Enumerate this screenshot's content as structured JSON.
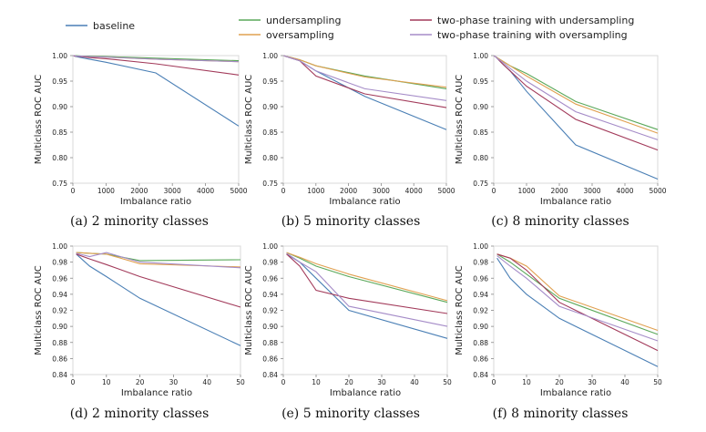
{
  "legend": [
    {
      "name": "baseline",
      "color": "#4a7fb5"
    },
    {
      "name": "undersampling",
      "color": "#5aa85a"
    },
    {
      "name": "oversampling",
      "color": "#e0a050"
    },
    {
      "name": "two-phase training with undersampling",
      "color": "#a23a5a"
    },
    {
      "name": "two-phase training with oversampling",
      "color": "#a58cc8"
    }
  ],
  "chart_data": [
    {
      "type": "line",
      "caption": "(a) 2 minority classes",
      "xlabel": "Imbalance ratio",
      "ylabel": "Multiclass ROC AUC",
      "xlim": [
        0,
        5000
      ],
      "ylim": [
        0.75,
        1.0
      ],
      "xticks": [
        "0",
        "1000",
        "2000",
        "3000",
        "4000",
        "5000"
      ],
      "yticks": [
        "0.75",
        "0.80",
        "0.85",
        "0.90",
        "0.95",
        "1.00"
      ],
      "x": [
        10,
        20,
        50,
        100,
        250,
        500,
        1000,
        2500,
        5000
      ],
      "series": [
        {
          "values": [
            1.0,
            1.0,
            0.999,
            0.998,
            0.996,
            0.993,
            0.987,
            0.966,
            0.862
          ]
        },
        {
          "values": [
            1.0,
            1.0,
            1.0,
            1.0,
            0.999,
            0.999,
            0.998,
            0.995,
            0.99
          ]
        },
        {
          "values": [
            1.0,
            1.0,
            1.0,
            0.999,
            0.999,
            0.998,
            0.997,
            0.993,
            0.988
          ]
        },
        {
          "values": [
            1.0,
            1.0,
            0.999,
            0.999,
            0.998,
            0.996,
            0.994,
            0.984,
            0.962
          ]
        },
        {
          "values": [
            1.0,
            1.0,
            1.0,
            0.999,
            0.999,
            0.998,
            0.997,
            0.993,
            0.988
          ]
        }
      ]
    },
    {
      "type": "line",
      "caption": "(b) 5 minority classes",
      "xlabel": "Imbalance ratio",
      "ylabel": "Multiclass ROC AUC",
      "xlim": [
        0,
        5000
      ],
      "ylim": [
        0.75,
        1.0
      ],
      "xticks": [
        "0",
        "1000",
        "2000",
        "3000",
        "4000",
        "5000"
      ],
      "yticks": [
        "0.75",
        "0.80",
        "0.85",
        "0.90",
        "0.95",
        "1.00"
      ],
      "x": [
        10,
        20,
        50,
        100,
        250,
        500,
        1000,
        2500,
        5000
      ],
      "series": [
        {
          "values": [
            1.0,
            1.0,
            0.999,
            0.998,
            0.995,
            0.99,
            0.97,
            0.92,
            0.855
          ]
        },
        {
          "values": [
            1.0,
            1.0,
            0.999,
            0.998,
            0.996,
            0.992,
            0.98,
            0.96,
            0.935
          ]
        },
        {
          "values": [
            1.0,
            1.0,
            0.999,
            0.998,
            0.996,
            0.992,
            0.98,
            0.958,
            0.938
          ]
        },
        {
          "values": [
            1.0,
            1.0,
            0.999,
            0.998,
            0.995,
            0.99,
            0.96,
            0.925,
            0.898
          ]
        },
        {
          "values": [
            1.0,
            1.0,
            0.999,
            0.998,
            0.995,
            0.99,
            0.97,
            0.935,
            0.912
          ]
        }
      ]
    },
    {
      "type": "line",
      "caption": "(c) 8 minority classes",
      "xlabel": "Imbalance ratio",
      "ylabel": "Multiclass ROC AUC",
      "xlim": [
        0,
        5000
      ],
      "ylim": [
        0.75,
        1.0
      ],
      "xticks": [
        "0",
        "1000",
        "2000",
        "3000",
        "4000",
        "5000"
      ],
      "yticks": [
        "0.75",
        "0.80",
        "0.85",
        "0.90",
        "0.95",
        "1.00"
      ],
      "x": [
        10,
        20,
        50,
        100,
        250,
        500,
        1000,
        2500,
        5000
      ],
      "series": [
        {
          "values": [
            1.0,
            0.999,
            0.998,
            0.995,
            0.985,
            0.97,
            0.93,
            0.825,
            0.758
          ]
        },
        {
          "values": [
            1.0,
            0.999,
            0.998,
            0.996,
            0.99,
            0.98,
            0.965,
            0.91,
            0.855
          ]
        },
        {
          "values": [
            1.0,
            0.999,
            0.998,
            0.996,
            0.99,
            0.98,
            0.96,
            0.905,
            0.848
          ]
        },
        {
          "values": [
            1.0,
            0.999,
            0.998,
            0.995,
            0.985,
            0.97,
            0.94,
            0.875,
            0.815
          ]
        },
        {
          "values": [
            1.0,
            0.999,
            0.998,
            0.995,
            0.988,
            0.975,
            0.95,
            0.89,
            0.835
          ]
        }
      ]
    },
    {
      "type": "line",
      "caption": "(d) 2 minority classes",
      "xlabel": "Imbalance ratio",
      "ylabel": "Multiclass ROC AUC",
      "xlim": [
        0,
        50
      ],
      "ylim": [
        0.84,
        1.0
      ],
      "xticks": [
        "0",
        "10",
        "20",
        "30",
        "40",
        "50"
      ],
      "yticks": [
        "0.84",
        "0.86",
        "0.88",
        "0.90",
        "0.92",
        "0.94",
        "0.96",
        "0.98",
        "1.00"
      ],
      "x": [
        1,
        5,
        10,
        20,
        50
      ],
      "series": [
        {
          "values": [
            0.99,
            0.975,
            0.962,
            0.935,
            0.876
          ]
        },
        {
          "values": [
            0.992,
            0.991,
            0.99,
            0.982,
            0.983
          ]
        },
        {
          "values": [
            0.992,
            0.991,
            0.99,
            0.978,
            0.974
          ]
        },
        {
          "values": [
            0.99,
            0.984,
            0.977,
            0.962,
            0.924
          ]
        },
        {
          "values": [
            0.991,
            0.987,
            0.992,
            0.98,
            0.973
          ]
        }
      ]
    },
    {
      "type": "line",
      "caption": "(e) 5 minority classes",
      "xlabel": "Imbalance ratio",
      "ylabel": "Multiclass ROC AUC",
      "xlim": [
        0,
        50
      ],
      "ylim": [
        0.84,
        1.0
      ],
      "xticks": [
        "0",
        "10",
        "20",
        "30",
        "40",
        "50"
      ],
      "yticks": [
        "0.84",
        "0.86",
        "0.88",
        "0.90",
        "0.92",
        "0.94",
        "0.96",
        "0.98",
        "1.00"
      ],
      "x": [
        1,
        5,
        10,
        20,
        50
      ],
      "series": [
        {
          "values": [
            0.99,
            0.98,
            0.96,
            0.92,
            0.885
          ]
        },
        {
          "values": [
            0.992,
            0.985,
            0.975,
            0.962,
            0.93
          ]
        },
        {
          "values": [
            0.992,
            0.986,
            0.978,
            0.965,
            0.932
          ]
        },
        {
          "values": [
            0.99,
            0.975,
            0.945,
            0.935,
            0.916
          ]
        },
        {
          "values": [
            0.991,
            0.98,
            0.968,
            0.925,
            0.9
          ]
        }
      ]
    },
    {
      "type": "line",
      "caption": "(f) 8 minority classes",
      "xlabel": "Imbalance ratio",
      "ylabel": "Multiclass ROC AUC",
      "xlim": [
        0,
        50
      ],
      "ylim": [
        0.84,
        1.0
      ],
      "xticks": [
        "0",
        "10",
        "20",
        "30",
        "40",
        "50"
      ],
      "yticks": [
        "0.84",
        "0.86",
        "0.88",
        "0.90",
        "0.92",
        "0.94",
        "0.96",
        "0.98",
        "1.00"
      ],
      "x": [
        1,
        5,
        10,
        20,
        50
      ],
      "series": [
        {
          "values": [
            0.985,
            0.96,
            0.94,
            0.91,
            0.85
          ]
        },
        {
          "values": [
            0.99,
            0.98,
            0.965,
            0.935,
            0.89
          ]
        },
        {
          "values": [
            0.99,
            0.985,
            0.975,
            0.938,
            0.895
          ]
        },
        {
          "values": [
            0.99,
            0.985,
            0.97,
            0.93,
            0.87
          ]
        },
        {
          "values": [
            0.988,
            0.975,
            0.96,
            0.925,
            0.882
          ]
        }
      ]
    }
  ]
}
